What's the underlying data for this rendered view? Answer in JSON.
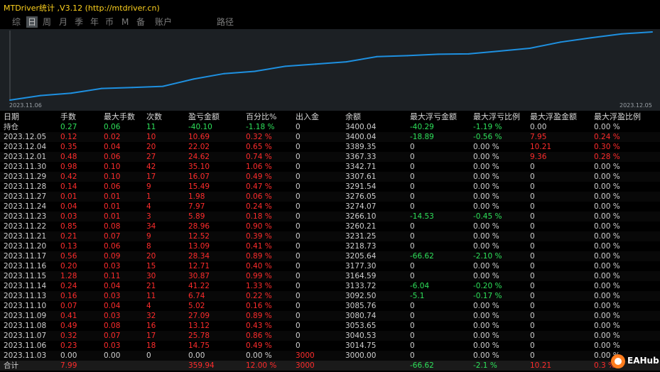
{
  "app": {
    "title": "MTDriver统计 ,V3.12 (http://mtdriver.cn)"
  },
  "tabs": [
    "综",
    "日",
    "周",
    "月",
    "季",
    "年",
    "币",
    "M",
    "备",
    "账户",
    "路径"
  ],
  "active_tab": "日",
  "chart_data": {
    "type": "line",
    "x": [
      "2023.11.06",
      "2023.11.07",
      "2023.11.08",
      "2023.11.09",
      "2023.11.10",
      "2023.11.13",
      "2023.11.14",
      "2023.11.15",
      "2023.11.16",
      "2023.11.17",
      "2023.11.20",
      "2023.11.21",
      "2023.11.22",
      "2023.11.23",
      "2023.11.24",
      "2023.11.27",
      "2023.11.28",
      "2023.11.29",
      "2023.11.30",
      "2023.12.01",
      "2023.12.04",
      "2023.12.05"
    ],
    "series": [
      {
        "values": [
          3014.75,
          3040.53,
          3053.65,
          3080.74,
          3085.76,
          3092.5,
          3133.72,
          3164.59,
          3177.3,
          3205.64,
          3218.73,
          3231.25,
          3260.21,
          3266.1,
          3274.07,
          3276.05,
          3291.54,
          3307.61,
          3342.71,
          3367.33,
          3389.35,
          3400.04
        ]
      }
    ],
    "x_tick_labels": [
      "2023.11.06",
      "2023.12.05"
    ],
    "color": "#1e90e0"
  },
  "table": {
    "headers": [
      "日期",
      "手数",
      "最大手数",
      "次数",
      "盈亏金额",
      "百分比%",
      "出入金",
      "余额",
      "最大浮亏金额",
      "最大浮亏比例",
      "最大浮盈金额",
      "最大浮盈比例"
    ],
    "position_row": [
      "持仓",
      "0.27",
      "0.06",
      "11",
      "-40.10",
      "-1.18 %",
      "0",
      "3400.04",
      "-40.29",
      "-1.19 %",
      "0.00",
      "0.00 %"
    ],
    "rows": [
      [
        "2023.12.05",
        "0.12",
        "0.02",
        "10",
        "10.69",
        "0.32 %",
        "0",
        "3400.04",
        "-18.89",
        "-0.56 %",
        "7.95",
        "0.24 %"
      ],
      [
        "2023.12.04",
        "0.35",
        "0.04",
        "20",
        "22.02",
        "0.65 %",
        "0",
        "3389.35",
        "0",
        "0.00 %",
        "10.21",
        "0.30 %"
      ],
      [
        "2023.12.01",
        "0.48",
        "0.06",
        "27",
        "24.62",
        "0.74 %",
        "0",
        "3367.33",
        "0",
        "0.00 %",
        "9.36",
        "0.28 %"
      ],
      [
        "2023.11.30",
        "0.98",
        "0.10",
        "42",
        "35.10",
        "1.06 %",
        "0",
        "3342.71",
        "0",
        "0.00 %",
        "0",
        "0.00 %"
      ],
      [
        "2023.11.29",
        "0.42",
        "0.10",
        "17",
        "16.07",
        "0.49 %",
        "0",
        "3307.61",
        "0",
        "0.00 %",
        "0",
        "0.00 %"
      ],
      [
        "2023.11.28",
        "0.14",
        "0.06",
        "9",
        "15.49",
        "0.47 %",
        "0",
        "3291.54",
        "0",
        "0.00 %",
        "0",
        "0.00 %"
      ],
      [
        "2023.11.27",
        "0.01",
        "0.01",
        "1",
        "1.98",
        "0.06 %",
        "0",
        "3276.05",
        "0",
        "0.00 %",
        "0",
        "0.00 %"
      ],
      [
        "2023.11.24",
        "0.04",
        "0.01",
        "4",
        "7.97",
        "0.24 %",
        "0",
        "3274.07",
        "0",
        "0.00 %",
        "0",
        "0.00 %"
      ],
      [
        "2023.11.23",
        "0.03",
        "0.01",
        "3",
        "5.89",
        "0.18 %",
        "0",
        "3266.10",
        "-14.53",
        "-0.45 %",
        "0",
        "0.00 %"
      ],
      [
        "2023.11.22",
        "0.85",
        "0.08",
        "34",
        "28.96",
        "0.90 %",
        "0",
        "3260.21",
        "0",
        "0.00 %",
        "0",
        "0.00 %"
      ],
      [
        "2023.11.21",
        "0.21",
        "0.07",
        "9",
        "12.52",
        "0.39 %",
        "0",
        "3231.25",
        "0",
        "0.00 %",
        "0",
        "0.00 %"
      ],
      [
        "2023.11.20",
        "0.13",
        "0.06",
        "8",
        "13.09",
        "0.41 %",
        "0",
        "3218.73",
        "0",
        "0.00 %",
        "0",
        "0.00 %"
      ],
      [
        "2023.11.17",
        "0.56",
        "0.09",
        "20",
        "28.34",
        "0.89 %",
        "0",
        "3205.64",
        "-66.62",
        "-2.10 %",
        "0",
        "0.00 %"
      ],
      [
        "2023.11.16",
        "0.20",
        "0.03",
        "15",
        "12.71",
        "0.40 %",
        "0",
        "3177.30",
        "0",
        "0.00 %",
        "0",
        "0.00 %"
      ],
      [
        "2023.11.15",
        "1.28",
        "0.11",
        "30",
        "30.87",
        "0.99 %",
        "0",
        "3164.59",
        "0",
        "0.00 %",
        "0",
        "0.00 %"
      ],
      [
        "2023.11.14",
        "0.24",
        "0.04",
        "21",
        "41.22",
        "1.33 %",
        "0",
        "3133.72",
        "-6.04",
        "-0.20 %",
        "0",
        "0.00 %"
      ],
      [
        "2023.11.13",
        "0.16",
        "0.03",
        "11",
        "6.74",
        "0.22 %",
        "0",
        "3092.50",
        "-5.1",
        "-0.17 %",
        "0",
        "0.00 %"
      ],
      [
        "2023.11.10",
        "0.07",
        "0.04",
        "4",
        "5.02",
        "0.16 %",
        "0",
        "3085.76",
        "0",
        "0.00 %",
        "0",
        "0.00 %"
      ],
      [
        "2023.11.09",
        "0.41",
        "0.03",
        "32",
        "27.09",
        "0.89 %",
        "0",
        "3080.74",
        "0",
        "0.00 %",
        "0",
        "0.00 %"
      ],
      [
        "2023.11.08",
        "0.49",
        "0.08",
        "16",
        "13.12",
        "0.43 %",
        "0",
        "3053.65",
        "0",
        "0.00 %",
        "0",
        "0.00 %"
      ],
      [
        "2023.11.07",
        "0.32",
        "0.07",
        "17",
        "25.78",
        "0.86 %",
        "0",
        "3040.53",
        "0",
        "0.00 %",
        "0",
        "0.00 %"
      ],
      [
        "2023.11.06",
        "0.23",
        "0.03",
        "18",
        "14.75",
        "0.49 %",
        "0",
        "3014.75",
        "0",
        "0.00 %",
        "0",
        "0.00 %"
      ],
      [
        "2023.11.03",
        "0.00",
        "0.00",
        "0",
        "0.00",
        "0.00 %",
        "3000",
        "3000.00",
        "0",
        "0.00 %",
        "0",
        "0.00 %"
      ]
    ],
    "total_row": [
      "合计",
      "7.99",
      "",
      "",
      "359.94",
      "12.00 %",
      "3000",
      "",
      "-66.62",
      "-2.1 %",
      "10.21",
      "0.3 %"
    ]
  },
  "watermark": {
    "text": "EAHub"
  },
  "colors": {
    "title": "#ffd21e",
    "positive": "#ff2c2c",
    "negative": "#2ee05a",
    "neutral": "#d0d0d0",
    "line": "#1e90e0",
    "chart_bg": "#1c2024"
  }
}
